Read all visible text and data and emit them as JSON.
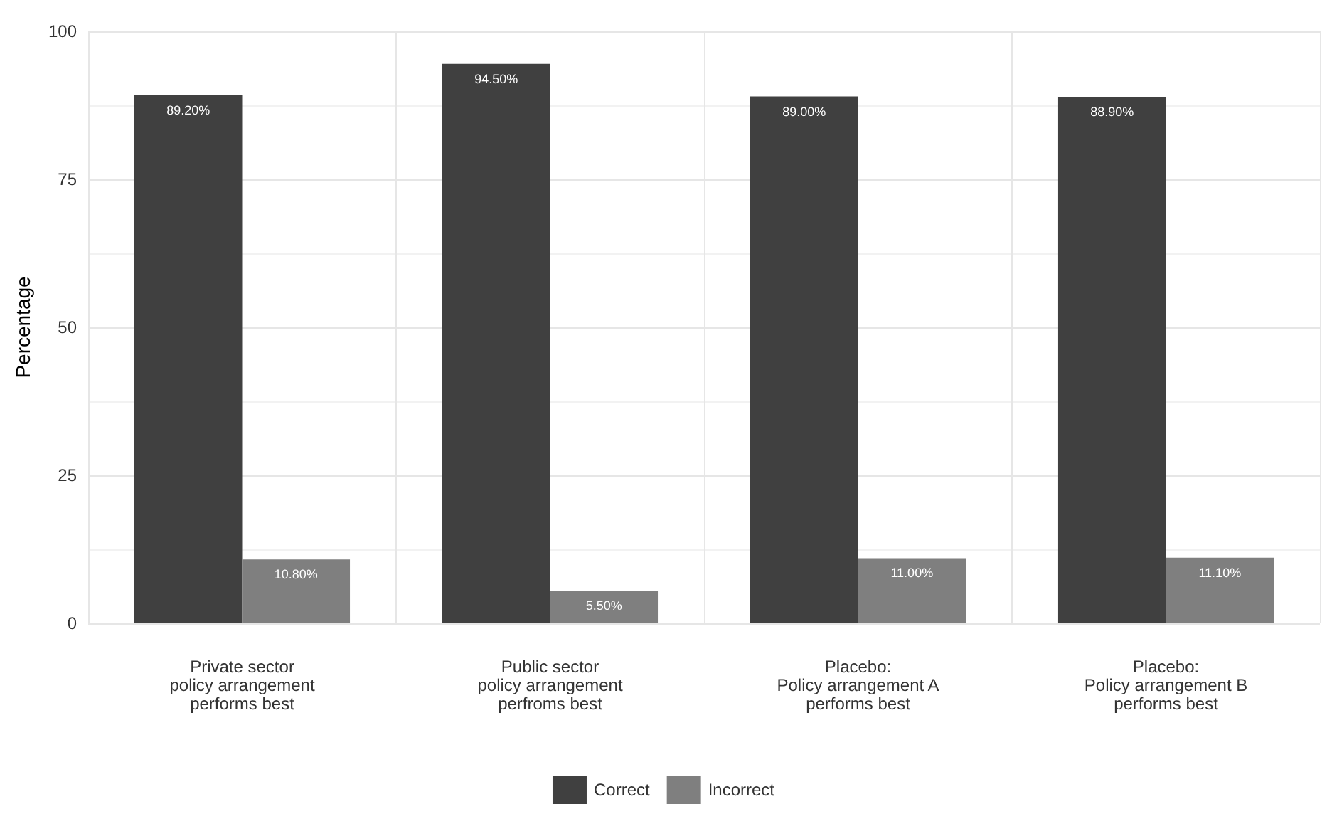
{
  "chart_data": {
    "type": "bar",
    "ylabel": "Percentage",
    "categories": [
      "Private sector\npolicy arrangement\nperforms best",
      "Public sector\npolicy arrangement\nperfroms best",
      "Placebo:\nPolicy arrangement A\nperforms best",
      "Placebo:\nPolicy arrangement B\nperforms best"
    ],
    "series": [
      {
        "name": "Correct",
        "color": "#404040",
        "values": [
          89.2,
          94.5,
          89.0,
          88.9
        ],
        "value_labels": [
          "89.20%",
          "94.50%",
          "89.00%",
          "88.90%"
        ]
      },
      {
        "name": "Incorrect",
        "color": "#7f7f7f",
        "values": [
          10.8,
          5.5,
          11.0,
          11.1
        ],
        "value_labels": [
          "10.80%",
          "5.50%",
          "11.00%",
          "11.10%"
        ]
      }
    ],
    "ylim": [
      0,
      100
    ],
    "yticks": [
      0,
      25,
      50,
      75,
      100
    ],
    "grid": true,
    "legend": "bottom"
  }
}
